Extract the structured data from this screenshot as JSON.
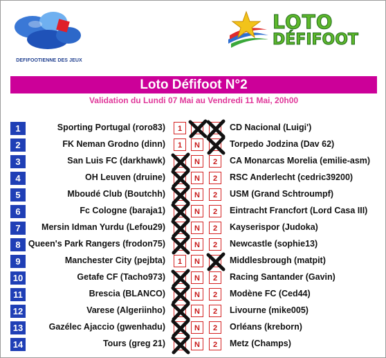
{
  "header": {
    "left_logo_caption": "DEFIFOOTIENNE DES JEUX",
    "right_logo_line1": "LOTO",
    "right_logo_line2": "DÉFIFOOT"
  },
  "title": "Loto Défifoot N°2",
  "subtitle": "Validation du Lundi 07 Mai au Vendredi 11 Mai, 20h00",
  "colors": {
    "title_bar": "#cc0099",
    "subtitle": "#e0389a",
    "number_box": "#1f3fb6",
    "choice_border": "#d42020"
  },
  "choice_labels": [
    "1",
    "N",
    "2"
  ],
  "matches": [
    {
      "number": "1",
      "home": "Sporting Portugal (roro83)",
      "away": "CD Nacional (Luigi')",
      "crossed": [
        "N",
        "2"
      ]
    },
    {
      "number": "2",
      "home": "FK Neman Grodno (dinn)",
      "away": "Torpedo Jodzina (Dav 62)",
      "crossed": [
        "2"
      ]
    },
    {
      "number": "3",
      "home": "San Luis FC (darkhawk)",
      "away": "CA Monarcas Morelia (emilie-asm)",
      "crossed": [
        "1"
      ]
    },
    {
      "number": "4",
      "home": "OH Leuven (druine)",
      "away": "RSC Anderlecht (cedric39200)",
      "crossed": [
        "1"
      ]
    },
    {
      "number": "5",
      "home": "Mboudé Club (Boutchh)",
      "away": "USM (Grand Schtroumpf)",
      "crossed": [
        "1"
      ]
    },
    {
      "number": "6",
      "home": "Fc Cologne (baraja1)",
      "away": "Eintracht Francfort (Lord Casa III)",
      "crossed": [
        "1"
      ]
    },
    {
      "number": "7",
      "home": "Mersin Idman Yurdu (Lefou29)",
      "away": "Kayserispor (Judoka)",
      "crossed": [
        "1"
      ]
    },
    {
      "number": "8",
      "home": "Queen's Park Rangers (frodon75)",
      "away": "Newcastle (sophie13)",
      "crossed": [
        "1"
      ]
    },
    {
      "number": "9",
      "home": "Manchester City (pejbta)",
      "away": "Middlesbrough (matpit)",
      "crossed": [
        "2"
      ]
    },
    {
      "number": "10",
      "home": "Getafe CF (Tacho973)",
      "away": "Racing Santander (Gavin)",
      "crossed": [
        "1"
      ]
    },
    {
      "number": "11",
      "home": "Brescia (BLANCO)",
      "away": "Modène FC (Ced44)",
      "crossed": [
        "1"
      ]
    },
    {
      "number": "12",
      "home": "Varese (Algeriinho)",
      "away": "Livourne (mike005)",
      "crossed": [
        "1"
      ]
    },
    {
      "number": "13",
      "home": "Gazélec Ajaccio (gwenhadu)",
      "away": "Orléans (kreborn)",
      "crossed": [
        "1"
      ]
    },
    {
      "number": "14",
      "home": "Tours (greg 21)",
      "away": "Metz (Champs)",
      "crossed": [
        "1"
      ]
    }
  ]
}
